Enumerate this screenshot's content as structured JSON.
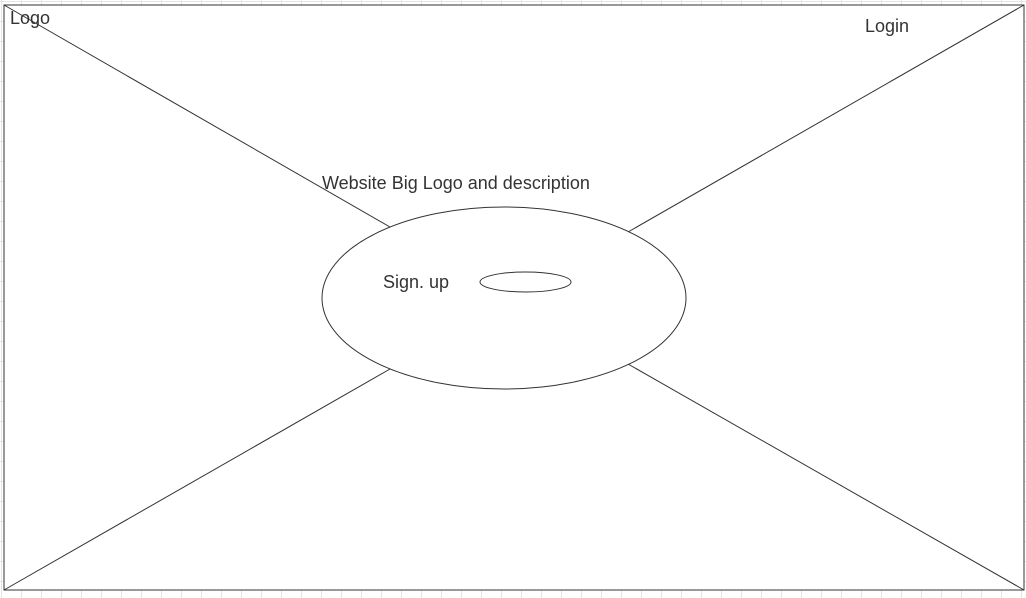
{
  "header": {
    "logo_text": "Logo",
    "login_text": "Login"
  },
  "hero": {
    "description_text": "Website Big Logo and description",
    "signup_text": "Sign. up"
  },
  "colors": {
    "stroke": "#333333",
    "grid": "#e4e4e4",
    "background": "#ffffff"
  }
}
